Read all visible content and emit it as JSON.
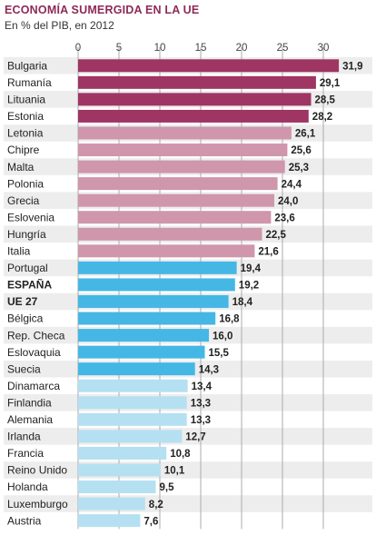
{
  "title": "ECONOMÍA SUMERGIDA EN LA UE",
  "subtitle": "En % del PIB, en 2012",
  "colors": {
    "high": "#9e3563",
    "mid": "#cf96ac",
    "blue": "#45b7e5",
    "light": "#b5e0f1",
    "grid": "#ababab",
    "row_stripe": "#ededed"
  },
  "chart_data": {
    "type": "bar",
    "orientation": "horizontal",
    "title": "ECONOMÍA SUMERGIDA EN LA UE",
    "subtitle": "En % del PIB, en 2012",
    "xlim": [
      0,
      33
    ],
    "ticks": [
      0,
      5,
      10,
      15,
      20,
      25,
      30
    ],
    "tick_labels": [
      "0",
      "5",
      "10",
      "15",
      "20",
      "25",
      "30"
    ],
    "grid": true,
    "categories": [
      "Bulgaria",
      "Rumanía",
      "Lituania",
      "Estonia",
      "Letonia",
      "Chipre",
      "Malta",
      "Polonia",
      "Grecia",
      "Eslovenia",
      "Hungría",
      "Italia",
      "Portugal",
      "ESPAÑA",
      "UE 27",
      "Bélgica",
      "Rep. Checa",
      "Eslovaquia",
      "Suecia",
      "Dinamarca",
      "Finlandia",
      "Alemania",
      "Irlanda",
      "Francia",
      "Reino Unido",
      "Holanda",
      "Luxemburgo",
      "Austria"
    ],
    "values": [
      31.9,
      29.1,
      28.5,
      28.2,
      26.1,
      25.6,
      25.3,
      24.4,
      24.0,
      23.6,
      22.5,
      21.6,
      19.4,
      19.2,
      18.4,
      16.8,
      16.0,
      15.5,
      14.3,
      13.4,
      13.3,
      13.3,
      12.7,
      10.8,
      10.1,
      9.5,
      8.2,
      7.6
    ],
    "value_labels": [
      "31,9",
      "29,1",
      "28,5",
      "28,2",
      "26,1",
      "25,6",
      "25,3",
      "24,4",
      "24,0",
      "23,6",
      "22,5",
      "21,6",
      "19,4",
      "19,2",
      "18,4",
      "16,8",
      "16,0",
      "15,5",
      "14,3",
      "13,4",
      "13,3",
      "13,3",
      "12,7",
      "10,8",
      "10,1",
      "9,5",
      "8,2",
      "7,6"
    ],
    "color_groups": [
      "high",
      "high",
      "high",
      "high",
      "mid",
      "mid",
      "mid",
      "mid",
      "mid",
      "mid",
      "mid",
      "mid",
      "blue",
      "blue",
      "blue",
      "blue",
      "blue",
      "blue",
      "blue",
      "light",
      "light",
      "light",
      "light",
      "light",
      "light",
      "light",
      "light",
      "light"
    ],
    "bold_categories": [
      "ESPAÑA",
      "UE 27"
    ]
  }
}
